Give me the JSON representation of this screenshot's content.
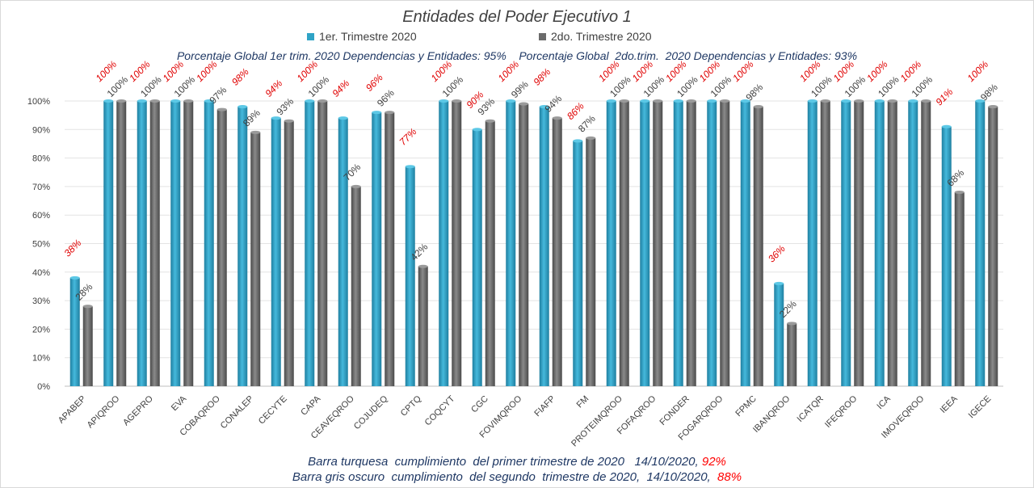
{
  "chart_data": {
    "type": "bar",
    "title": "Entidades del Poder Ejecutivo 1",
    "subtitle": "Porcentaje Global 1er trim. 2020 Dependencias y Entidades: 95%    Porcentaje Global  2do.trim.  2020 Dependencias y Entidades: 93%",
    "categories": [
      "APABEP",
      "APIQROO",
      "AGEPRO",
      "EVA",
      "COBAQROO",
      "CONALEP",
      "CECYTE",
      "CAPA",
      "CEAVEQROO",
      "COJUDEQ",
      "CPTQ",
      "COQCYT",
      "CGC",
      "FOVIMQROO",
      "FIAFP",
      "FM",
      "PROTEIMQROO",
      "FOFAQROO",
      "FONDER",
      "FOGARQROO",
      "FPMC",
      "IBANQROO",
      "ICATQR",
      "IFEQROO",
      "ICA",
      "IMOVEQROO",
      "IEEA",
      "IGECE"
    ],
    "series": [
      {
        "name": "1er. Trimestre 2020",
        "color": "#2fa3c6",
        "values": [
          38,
          100,
          100,
          100,
          100,
          98,
          94,
          100,
          94,
          96,
          77,
          100,
          90,
          100,
          98,
          86,
          100,
          100,
          100,
          100,
          100,
          36,
          100,
          100,
          100,
          100,
          91,
          100
        ],
        "labels": [
          "38%",
          "100%",
          "100%",
          "100%",
          "100%",
          "98%",
          "94%",
          "100%",
          "94%",
          "96%",
          "77%",
          "100%",
          "90%",
          "100%",
          "98%",
          "86%",
          "100%",
          "100%",
          "100%",
          "100%",
          "100%",
          "36%",
          "100%",
          "100%",
          "100%",
          "100%",
          "91%",
          "100%"
        ]
      },
      {
        "name": "2do. Trimestre 2020",
        "color": "#6b6b6b",
        "values": [
          28,
          100,
          100,
          100,
          97,
          89,
          93,
          100,
          70,
          96,
          42,
          100,
          93,
          99,
          94,
          87,
          100,
          100,
          100,
          100,
          98,
          22,
          100,
          100,
          100,
          100,
          68,
          98
        ],
        "labels": [
          "28%",
          "100%",
          "100%",
          "100%",
          "97%",
          "89%",
          "93%",
          "100%",
          "70%",
          "96%",
          "42%",
          "100%",
          "93%",
          "99%",
          "94%",
          "87%",
          "100%",
          "100%",
          "100%",
          "100%",
          "98%",
          "22%",
          "100%",
          "100%",
          "100%",
          "100%",
          "68%",
          "98%"
        ]
      }
    ],
    "y_ticks": [
      "0%",
      "10%",
      "20%",
      "30%",
      "40%",
      "50%",
      "60%",
      "70%",
      "80%",
      "90%",
      "100%"
    ],
    "ylim": [
      0,
      100
    ],
    "grid": true,
    "legend": "top-center",
    "notes": [
      {
        "text": "Barra turquesa  cumplimiento  del primer trimestre de 2020   14/10/2020, ",
        "pct": "92%"
      },
      {
        "text": "Barra gris oscuro  cumplimiento  del segundo  trimestre de 2020,  14/10/2020,  ",
        "pct": "88%"
      }
    ]
  }
}
